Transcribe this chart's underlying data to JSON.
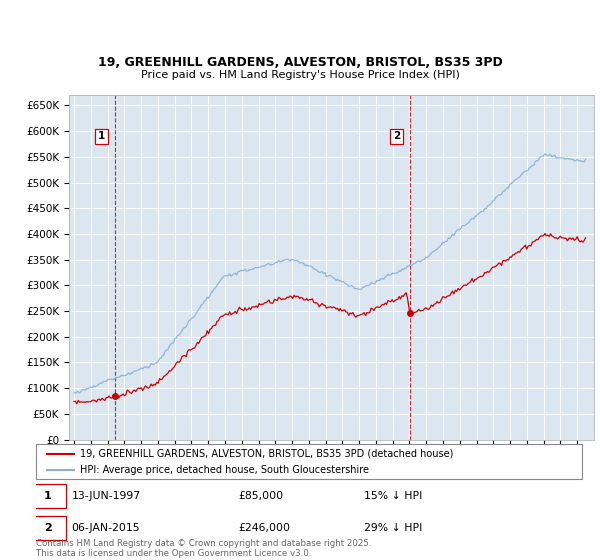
{
  "title1": "19, GREENHILL GARDENS, ALVESTON, BRISTOL, BS35 3PD",
  "title2": "Price paid vs. HM Land Registry's House Price Index (HPI)",
  "ylim": [
    0,
    670000
  ],
  "yticks": [
    0,
    50000,
    100000,
    150000,
    200000,
    250000,
    300000,
    350000,
    400000,
    450000,
    500000,
    550000,
    600000,
    650000
  ],
  "background_color": "#dce6f1",
  "legend_label_red": "19, GREENHILL GARDENS, ALVESTON, BRISTOL, BS35 3PD (detached house)",
  "legend_label_blue": "HPI: Average price, detached house, South Gloucestershire",
  "marker1_year": 1997.45,
  "marker1_price": 85000,
  "marker2_year": 2015.03,
  "marker2_price": 246000,
  "footer": "Contains HM Land Registry data © Crown copyright and database right 2025.\nThis data is licensed under the Open Government Licence v3.0.",
  "red_color": "#cc0000",
  "blue_color": "#89afd4",
  "vline_color": "#cc0000",
  "dot_color": "#cc0000",
  "ann1_date": "13-JUN-1997",
  "ann1_price": "£85,000",
  "ann1_hpi": "15% ↓ HPI",
  "ann2_date": "06-JAN-2015",
  "ann2_price": "£246,000",
  "ann2_hpi": "29% ↓ HPI"
}
